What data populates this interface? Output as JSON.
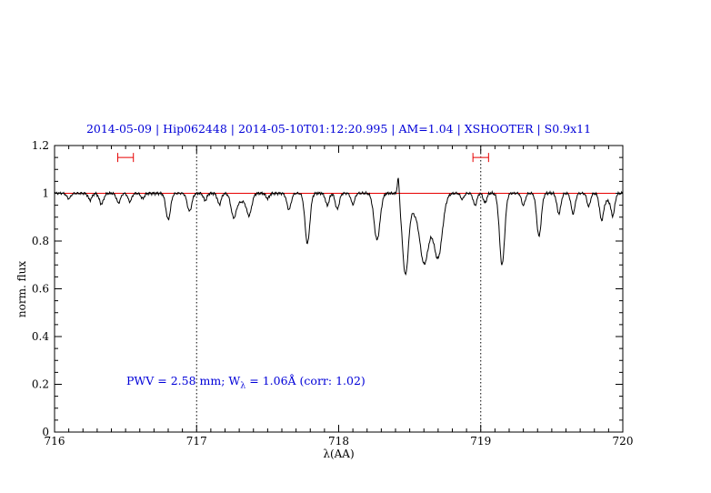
{
  "title": "2014-05-09 | Hip062448 | 2014-05-10T01:12:20.995 | AM=1.04 | XSHOOTER | S0.9x11",
  "annotation": {
    "pre": "PWV = 2.58 mm; W",
    "sub": "λ",
    "post": " = 1.06Å (corr: 1.02)"
  },
  "colors": {
    "title": "#0000d8",
    "annotation": "#0000d8",
    "continuum": "#e60000",
    "marker": "#e60000",
    "spectrum": "#000000",
    "axis": "#000000"
  },
  "chart_data": {
    "type": "line",
    "title": "2014-05-09 | Hip062448 | 2014-05-10T01:12:20.995 | AM=1.04 | XSHOOTER | S0.9x11",
    "xlabel": "λ(AA)",
    "ylabel": "norm. flux",
    "xlim": [
      716,
      720
    ],
    "ylim": [
      0,
      1.2
    ],
    "xticks": [
      716,
      717,
      718,
      719,
      720
    ],
    "xtick_labels": [
      "716",
      "717",
      "718",
      "719",
      "720"
    ],
    "yticks": [
      0,
      0.2,
      0.4,
      0.6,
      0.8,
      1,
      1.2
    ],
    "ytick_labels": [
      "0",
      "0.2",
      "0.4",
      "0.6",
      "0.8",
      "1",
      "1.2"
    ],
    "x_minor_step": 0.1,
    "y_minor_step": 0.05,
    "grid": false,
    "legend": null,
    "vlines": [
      717,
      719
    ],
    "vline_style": "dotted",
    "continuum_level": 1.0,
    "noise_amplitude": 0.007,
    "markers": [
      {
        "x": 716.5,
        "y": 1.15,
        "half_width": 0.055
      },
      {
        "x": 719.0,
        "y": 1.15,
        "half_width": 0.055
      }
    ],
    "absorption_lines": [
      [
        716.1,
        0.022,
        0.014
      ],
      [
        716.25,
        0.028,
        0.013
      ],
      [
        716.33,
        0.045,
        0.015
      ],
      [
        716.45,
        0.04,
        0.014
      ],
      [
        716.53,
        0.035,
        0.013
      ],
      [
        716.62,
        0.022,
        0.012
      ],
      [
        716.8,
        0.11,
        0.016
      ],
      [
        716.95,
        0.075,
        0.016
      ],
      [
        717.06,
        0.03,
        0.012
      ],
      [
        717.16,
        0.046,
        0.013
      ],
      [
        717.26,
        0.09,
        0.018
      ],
      [
        717.31,
        0.035,
        0.035
      ],
      [
        717.37,
        0.085,
        0.018
      ],
      [
        717.5,
        0.022,
        0.012
      ],
      [
        717.65,
        0.068,
        0.015
      ],
      [
        717.78,
        0.21,
        0.017
      ],
      [
        717.92,
        0.05,
        0.013
      ],
      [
        717.99,
        0.066,
        0.014
      ],
      [
        718.1,
        0.046,
        0.013
      ],
      [
        718.27,
        0.195,
        0.021
      ],
      [
        718.42,
        -0.085,
        0.007
      ],
      [
        718.47,
        0.34,
        0.022
      ],
      [
        718.53,
        0.05,
        0.02
      ],
      [
        718.6,
        0.27,
        0.033
      ],
      [
        718.65,
        0.04,
        0.05
      ],
      [
        718.7,
        0.245,
        0.03
      ],
      [
        718.87,
        0.025,
        0.012
      ],
      [
        718.96,
        0.05,
        0.013
      ],
      [
        719.03,
        0.04,
        0.012
      ],
      [
        719.15,
        0.3,
        0.018
      ],
      [
        719.3,
        0.05,
        0.013
      ],
      [
        719.41,
        0.18,
        0.016
      ],
      [
        719.55,
        0.085,
        0.014
      ],
      [
        719.65,
        0.085,
        0.014
      ],
      [
        719.76,
        0.055,
        0.012
      ],
      [
        719.85,
        0.1,
        0.014
      ],
      [
        719.89,
        0.03,
        0.03
      ],
      [
        719.93,
        0.082,
        0.013
      ]
    ]
  }
}
